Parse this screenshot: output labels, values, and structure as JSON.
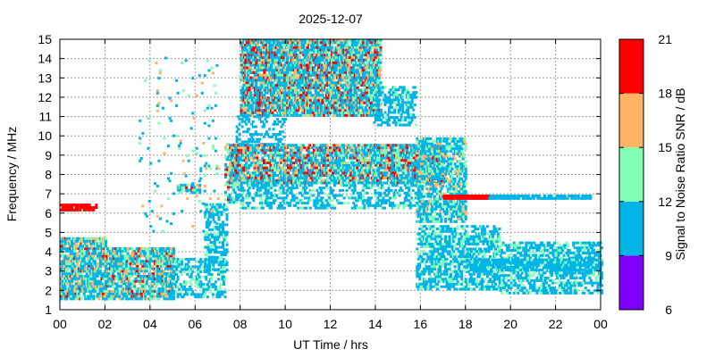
{
  "chart_data": {
    "type": "heatmap",
    "title": "2025-12-07",
    "xlabel": "UT Time / hrs",
    "ylabel": "Frequency / MHz",
    "xlim": [
      0,
      24
    ],
    "ylim": [
      1,
      15
    ],
    "xticks": [
      "00",
      "02",
      "04",
      "06",
      "08",
      "10",
      "12",
      "14",
      "16",
      "18",
      "20",
      "22",
      "00"
    ],
    "yticks": [
      "1",
      "2",
      "3",
      "4",
      "5",
      "6",
      "7",
      "8",
      "9",
      "10",
      "11",
      "12",
      "13",
      "14",
      "15"
    ],
    "grid": true,
    "colorbar": {
      "label": "Signal to Noise Ratio SNR / dB",
      "ticks": [
        "6",
        "9",
        "12",
        "15",
        "18",
        "21"
      ],
      "bins": [
        {
          "from": 6,
          "to": 9,
          "color": "#8000ff"
        },
        {
          "from": 9,
          "to": 12,
          "color": "#00b4e6"
        },
        {
          "from": 12,
          "to": 15,
          "color": "#80ffb4"
        },
        {
          "from": 15,
          "to": 18,
          "color": "#ffb464"
        },
        {
          "from": 18,
          "to": 21,
          "color": "#ff0000"
        }
      ]
    },
    "regions": [
      {
        "t": [
          0.0,
          2.0
        ],
        "f": [
          1.5,
          4.7
        ],
        "density": 0.72,
        "snr": [
          9,
          19
        ]
      },
      {
        "t": [
          2.0,
          5.0
        ],
        "f": [
          1.5,
          4.2
        ],
        "density": 0.72,
        "snr": [
          9,
          19
        ]
      },
      {
        "t": [
          5.0,
          7.3
        ],
        "f": [
          1.6,
          3.6
        ],
        "density": 0.35,
        "snr": [
          9,
          15
        ]
      },
      {
        "t": [
          6.4,
          7.4
        ],
        "f": [
          3.0,
          6.5
        ],
        "density": 0.45,
        "snr": [
          9,
          14
        ]
      },
      {
        "t": [
          7.3,
          8.0
        ],
        "f": [
          6.5,
          9.5
        ],
        "density": 0.45,
        "snr": [
          9,
          20
        ]
      },
      {
        "t": [
          8.0,
          14.2
        ],
        "f": [
          11.0,
          15.0
        ],
        "density": 0.8,
        "snr": [
          9,
          21
        ]
      },
      {
        "t": [
          7.8,
          10.0
        ],
        "f": [
          9.5,
          11.0
        ],
        "density": 0.25,
        "snr": [
          9,
          12
        ]
      },
      {
        "t": [
          13.9,
          15.8
        ],
        "f": [
          10.5,
          12.5
        ],
        "density": 0.45,
        "snr": [
          9,
          14
        ]
      },
      {
        "t": [
          7.5,
          17.0
        ],
        "f": [
          7.5,
          9.5
        ],
        "density": 0.72,
        "snr": [
          9,
          21
        ]
      },
      {
        "t": [
          8.0,
          16.0
        ],
        "f": [
          6.2,
          7.5
        ],
        "density": 0.35,
        "snr": [
          9,
          14
        ]
      },
      {
        "t": [
          15.8,
          18.0
        ],
        "f": [
          5.5,
          9.8
        ],
        "density": 0.55,
        "snr": [
          9,
          17
        ]
      },
      {
        "t": [
          15.8,
          19.5
        ],
        "f": [
          2.0,
          5.3
        ],
        "density": 0.5,
        "snr": [
          9,
          15
        ]
      },
      {
        "t": [
          19.5,
          24.0
        ],
        "f": [
          1.8,
          4.5
        ],
        "density": 0.45,
        "snr": [
          9,
          14
        ]
      },
      {
        "t": [
          17.0,
          19.0
        ],
        "f": [
          6.7,
          6.9
        ],
        "density": 0.95,
        "snr": [
          18,
          21
        ]
      },
      {
        "t": [
          19.0,
          23.5
        ],
        "f": [
          6.7,
          6.9
        ],
        "density": 0.7,
        "snr": [
          9,
          12
        ]
      },
      {
        "t": [
          0.0,
          1.6
        ],
        "f": [
          6.1,
          6.4
        ],
        "density": 0.8,
        "snr": [
          18,
          21
        ]
      },
      {
        "t": [
          3.5,
          7.0
        ],
        "f": [
          5.0,
          14.0
        ],
        "density": 0.03,
        "snr": [
          9,
          18
        ]
      },
      {
        "t": [
          5.2,
          6.2
        ],
        "f": [
          7.0,
          7.4
        ],
        "density": 0.6,
        "snr": [
          9,
          20
        ]
      },
      {
        "t": [
          18.0,
          24.0
        ],
        "f": [
          3.0,
          3.6
        ],
        "density": 0.6,
        "snr": [
          9,
          13
        ]
      }
    ]
  }
}
